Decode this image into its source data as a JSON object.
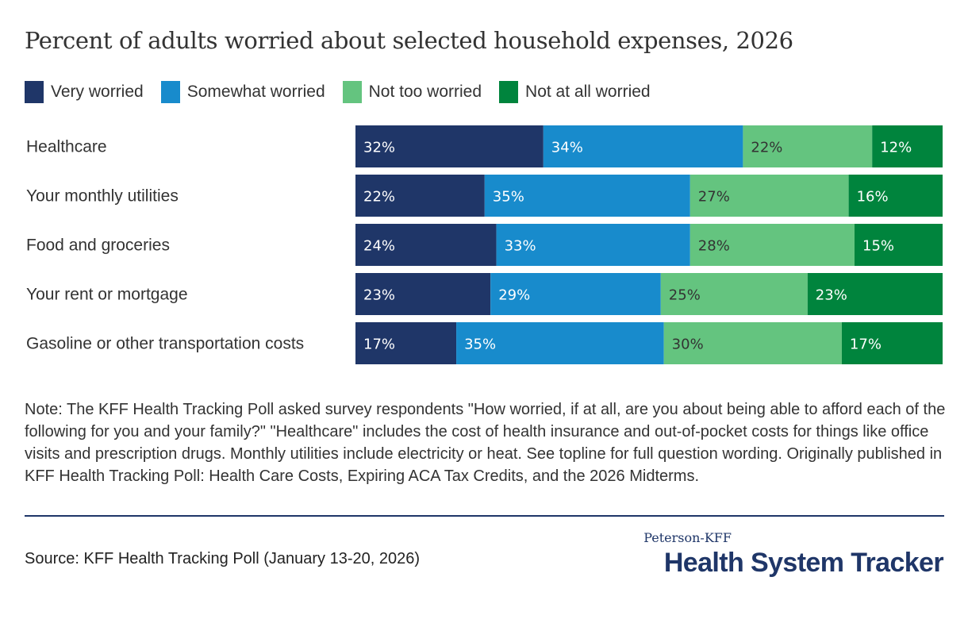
{
  "chart_data": {
    "type": "bar",
    "orientation": "horizontal",
    "stacked": true,
    "normalized_100": true,
    "title": "Percent of adults worried about selected household expenses, 2026",
    "xlabel": "",
    "ylabel": "",
    "legend_position": "top-left",
    "grid": false,
    "categories": [
      "Healthcare",
      "Your monthly utilities",
      "Food and groceries",
      "Your rent or mortgage",
      "Gasoline or other transportation costs"
    ],
    "series": [
      {
        "name": "Very worried",
        "color": "#1f3668",
        "label_color": "#ffffff",
        "values": [
          32,
          22,
          24,
          23,
          17
        ]
      },
      {
        "name": "Somewhat worried",
        "color": "#188bcc",
        "label_color": "#ffffff",
        "values": [
          34,
          35,
          33,
          29,
          35
        ]
      },
      {
        "name": "Not too worried",
        "color": "#64c47f",
        "label_color": "#333333",
        "values": [
          22,
          27,
          28,
          25,
          30
        ]
      },
      {
        "name": "Not at all worried",
        "color": "#00843d",
        "label_color": "#ffffff",
        "values": [
          12,
          16,
          15,
          23,
          17
        ]
      }
    ],
    "value_suffix": "%"
  },
  "note": "Note: The KFF Health Tracking Poll asked survey respondents \"How worried, if at all, are you about being able to afford each of the following for you and your family?\" \"Healthcare\" includes the cost of health insurance and out-of-pocket costs for things like office visits and prescription drugs. Monthly utilities include electricity or heat. See topline for full question wording. Originally published in KFF Health Tracking Poll: Health Care Costs, Expiring ACA Tax Credits, and the 2026 Midterms.",
  "source": "Source: KFF Health Tracking Poll (January 13-20, 2026)",
  "logo": {
    "top": "Peterson-KFF",
    "main": "Health System Tracker"
  }
}
